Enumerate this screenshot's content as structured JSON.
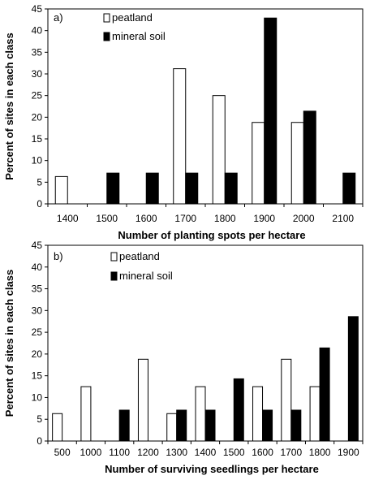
{
  "chart_data": [
    {
      "type": "bar",
      "panel_label": "a)",
      "categories": [
        "1400",
        "1500",
        "1600",
        "1700",
        "1800",
        "1900",
        "2000",
        "2100"
      ],
      "series": [
        {
          "name": "peatland",
          "color": "#ffffff",
          "values": [
            6.3,
            0,
            0,
            31.2,
            25.0,
            18.8,
            18.8,
            0
          ]
        },
        {
          "name": "mineral soil",
          "color": "#000000",
          "values": [
            0,
            7.1,
            7.1,
            7.1,
            7.1,
            42.9,
            21.4,
            7.1
          ]
        }
      ],
      "xlabel": "Number of planting spots  per hectare",
      "ylabel": "Percent of sites in each class",
      "ylim": [
        0,
        45
      ],
      "yticks": [
        "0",
        "5",
        "10",
        "15",
        "20",
        "25",
        "30",
        "35",
        "40",
        "45"
      ],
      "grid": false,
      "legend_position": "top-center"
    },
    {
      "type": "bar",
      "panel_label": "b)",
      "categories": [
        "500",
        "1000",
        "1100",
        "1200",
        "1300",
        "1400",
        "1500",
        "1600",
        "1700",
        "1800",
        "1900"
      ],
      "series": [
        {
          "name": "peatland",
          "color": "#ffffff",
          "values": [
            6.3,
            12.5,
            0,
            18.8,
            6.3,
            12.5,
            0,
            12.5,
            18.8,
            12.5,
            0
          ]
        },
        {
          "name": "mineral soil",
          "color": "#000000",
          "values": [
            0,
            0,
            7.1,
            0,
            7.1,
            7.1,
            14.3,
            7.1,
            7.1,
            21.4,
            28.6
          ]
        }
      ],
      "xlabel": "Number of surviving  seedlings per hectare",
      "ylabel": "Percent of sites in each class",
      "ylim": [
        0,
        45
      ],
      "yticks": [
        "0",
        "5",
        "10",
        "15",
        "20",
        "25",
        "30",
        "35",
        "40",
        "45"
      ],
      "grid": false,
      "legend_position": "top-center"
    }
  ]
}
